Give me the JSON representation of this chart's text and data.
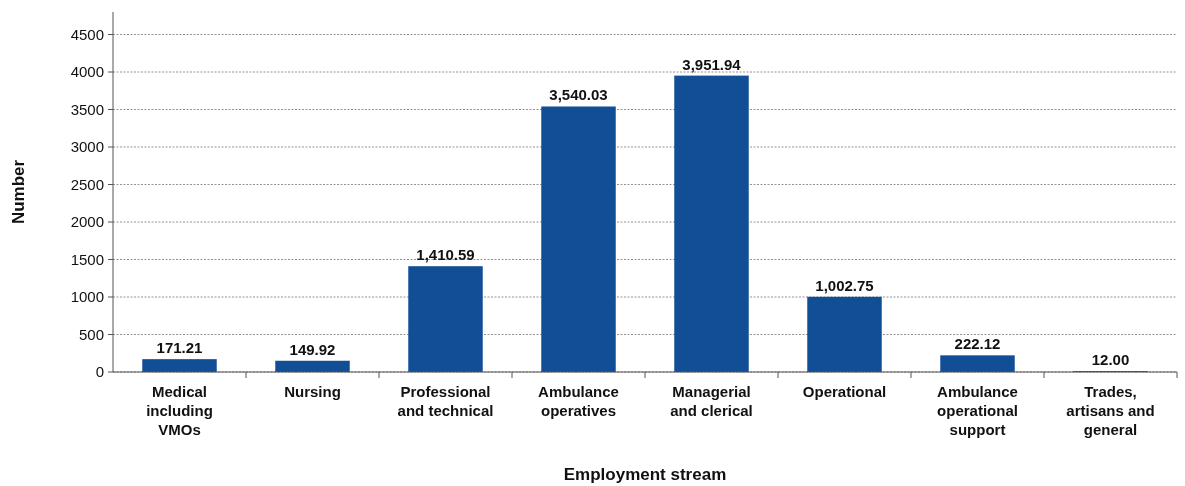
{
  "chart_data": {
    "type": "bar",
    "xlabel": "Employment stream",
    "ylabel": "Number",
    "categories": [
      "Medical including VMOs",
      "Nursing",
      "Professional and technical",
      "Ambulance operatives",
      "Managerial and clerical",
      "Operational",
      "Ambulance operational support",
      "Trades, artisans and general"
    ],
    "values": [
      171.21,
      149.92,
      1410.59,
      3540.03,
      3951.94,
      1002.75,
      222.12,
      12.0
    ],
    "value_labels": [
      "171.21",
      "149.92",
      "1,410.59",
      "3,540.03",
      "3,951.94",
      "1,002.75",
      "222.12",
      "12.00"
    ],
    "color": "#124e96",
    "ylim": [
      0,
      4800
    ],
    "yticks": [
      0,
      500,
      1000,
      1500,
      2000,
      2500,
      3000,
      3500,
      4000,
      4500
    ],
    "grid": "y"
  }
}
